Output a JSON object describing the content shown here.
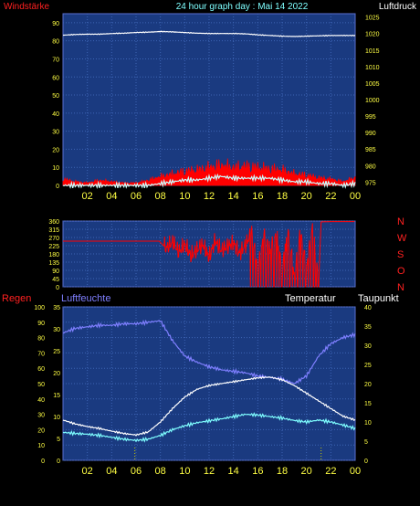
{
  "header": {
    "left_title": "Windstärke",
    "center_title": "24 hour graph day : Mai 14 2022",
    "right_title": "Luftdruck"
  },
  "colors": {
    "plot_bg": "#1a3a80",
    "frame": "#5a6fd0",
    "grid": "#3d64b4",
    "tick_text": "#ffff44",
    "wind": "#ff0000",
    "wind_avg": "#ccffff",
    "pressure": "#ffffff",
    "direction": "#ff0000",
    "humidity": "#7f7fff",
    "temperature": "#ffffff",
    "dewpoint": "#7fffff",
    "rain_marker": "#c8c800"
  },
  "chart_data": [
    {
      "type": "line",
      "name": "wind-pressure",
      "x_ticks": [
        "02",
        "04",
        "06",
        "08",
        "10",
        "12",
        "14",
        "16",
        "18",
        "20",
        "22",
        "00"
      ],
      "left_axis": {
        "label": "Windstärke",
        "ticks": [
          0,
          10,
          20,
          30,
          40,
          50,
          60,
          70,
          80,
          90
        ],
        "ylim": [
          0,
          95
        ]
      },
      "right_axis": {
        "label": "Luftdruck",
        "ticks": [
          975,
          980,
          985,
          990,
          995,
          1000,
          1005,
          1010,
          1015,
          1020,
          1025
        ],
        "ylim": [
          974,
          1026
        ]
      },
      "xlim": [
        0,
        24
      ],
      "series": [
        {
          "name": "Luftdruck",
          "axis": "right",
          "x": [
            0,
            1,
            2,
            3,
            4,
            5,
            6,
            7,
            8,
            9,
            10,
            11,
            12,
            13,
            14,
            15,
            16,
            17,
            18,
            19,
            20,
            21,
            22,
            23,
            24
          ],
          "values": [
            1019.5,
            1019.7,
            1019.8,
            1019.8,
            1020,
            1020.1,
            1020.3,
            1020.4,
            1020.6,
            1020.5,
            1020.3,
            1020.1,
            1020,
            1020,
            1020,
            1019.9,
            1019.6,
            1019.4,
            1019.2,
            1019.1,
            1019.2,
            1019.3,
            1019.4,
            1019.4,
            1019.4
          ]
        },
        {
          "name": "Böen",
          "axis": "left",
          "x": [
            0,
            1,
            2,
            3,
            4,
            5,
            6,
            7,
            8,
            9,
            10,
            11,
            12,
            13,
            14,
            15,
            16,
            17,
            18,
            19,
            20,
            21,
            22,
            23,
            24
          ],
          "values": [
            5,
            3,
            2,
            4,
            3,
            2,
            2,
            4,
            7,
            9,
            11,
            12,
            14,
            16,
            14,
            15,
            14,
            13,
            12,
            9,
            8,
            6,
            5,
            3,
            6
          ]
        },
        {
          "name": "Mittel",
          "axis": "left",
          "x": [
            0,
            1,
            2,
            3,
            4,
            5,
            6,
            7,
            8,
            9,
            10,
            11,
            12,
            13,
            14,
            15,
            16,
            17,
            18,
            19,
            20,
            21,
            22,
            23,
            24
          ],
          "values": [
            0,
            0,
            0,
            0,
            0,
            0,
            0,
            0,
            1,
            2,
            3,
            3,
            4,
            5,
            4,
            4,
            4,
            4,
            3,
            2,
            2,
            1,
            1,
            0,
            1
          ]
        }
      ]
    },
    {
      "type": "line",
      "name": "wind-direction",
      "x_ticks": [],
      "left_axis": {
        "ticks": [
          0,
          45,
          90,
          135,
          180,
          225,
          270,
          315,
          360
        ],
        "ylim": [
          0,
          360
        ]
      },
      "right_labels": [
        "N",
        "W",
        "S",
        "O",
        "N"
      ],
      "xlim": [
        0,
        24
      ],
      "series": [
        {
          "name": "Richtung",
          "x": [
            0,
            1,
            2,
            3,
            4,
            5,
            6,
            7,
            7.9,
            8.5,
            9,
            9.5,
            10,
            10.5,
            11,
            11.5,
            12,
            12.5,
            13,
            13.5,
            14,
            14.5,
            15,
            15.5,
            16,
            16.5,
            17,
            17.5,
            18,
            18.5,
            19,
            19.5,
            20,
            20.5,
            21,
            21.2,
            22,
            23,
            24
          ],
          "values": [
            250,
            250,
            250,
            250,
            250,
            250,
            250,
            250,
            250,
            210,
            245,
            190,
            230,
            170,
            200,
            230,
            160,
            250,
            200,
            220,
            240,
            180,
            230,
            300,
            90,
            280,
            200,
            300,
            120,
            320,
            60,
            300,
            100,
            330,
            20,
            355,
            357,
            357,
            357
          ]
        }
      ]
    },
    {
      "type": "line",
      "name": "temp-humidity",
      "x_ticks": [
        "02",
        "04",
        "06",
        "08",
        "10",
        "12",
        "14",
        "16",
        "18",
        "20",
        "22",
        "00"
      ],
      "left_axis": {
        "label": "Regen",
        "ticks": [
          0,
          10,
          20,
          30,
          40,
          50,
          60,
          70,
          80,
          90,
          100
        ],
        "ylim": [
          0,
          100
        ]
      },
      "left_axis2": {
        "label": "Luftfeuchte",
        "ticks": [
          0,
          5,
          10,
          15,
          20,
          25,
          30,
          35
        ],
        "ylim": [
          0,
          35
        ]
      },
      "right_axis": {
        "label": "Taupunkt",
        "ticks": [
          0,
          5,
          10,
          15,
          20,
          25,
          30,
          35,
          40
        ],
        "ylim": [
          0,
          40
        ]
      },
      "right_axis2": {
        "label": "Temperatur"
      },
      "xlim": [
        0,
        24
      ],
      "series": [
        {
          "name": "Luftfeuchte",
          "axis": "left",
          "x": [
            0,
            1,
            2,
            3,
            4,
            5,
            6,
            7,
            8,
            9,
            10,
            11,
            12,
            13,
            14,
            15,
            16,
            17,
            18,
            19,
            20,
            21,
            22,
            23,
            24
          ],
          "values": [
            83,
            86,
            87,
            88,
            88,
            89,
            89,
            90,
            91,
            78,
            68,
            64,
            61,
            59,
            58,
            57,
            55,
            54,
            53,
            50,
            55,
            68,
            76,
            80,
            82
          ]
        },
        {
          "name": "Temperatur",
          "axis": "right",
          "x": [
            0,
            1,
            2,
            3,
            4,
            5,
            6,
            7,
            8,
            9,
            10,
            11,
            12,
            13,
            14,
            15,
            16,
            17,
            18,
            19,
            20,
            21,
            22,
            23,
            24
          ],
          "values": [
            10.5,
            9.5,
            8.8,
            8.3,
            7.6,
            7,
            6.6,
            7.4,
            10,
            13.5,
            16.5,
            18.5,
            19.5,
            20,
            20.5,
            21,
            21.5,
            21.7,
            21,
            19.5,
            17.5,
            15.5,
            13.5,
            11.5,
            10.5
          ]
        },
        {
          "name": "Taupunkt",
          "axis": "right",
          "x": [
            0,
            1,
            2,
            3,
            4,
            5,
            6,
            7,
            8,
            9,
            10,
            11,
            12,
            13,
            14,
            15,
            16,
            17,
            18,
            19,
            20,
            21,
            22,
            23,
            24
          ],
          "values": [
            7.3,
            7,
            6.8,
            6.5,
            6,
            5.5,
            5.2,
            5.5,
            6.5,
            8,
            9,
            9.8,
            10.3,
            10.8,
            11.4,
            12,
            11.8,
            11.4,
            11,
            10.4,
            10,
            10.5,
            10,
            9.2,
            8.3
          ]
        }
      ],
      "rain_markers_x": [
        5.9,
        21.2
      ]
    }
  ],
  "panel2_right_letters": [
    "N",
    "W",
    "S",
    "O",
    "N"
  ],
  "panel3_headers": {
    "left1": "Regen",
    "left2": "Luftfeuchte",
    "right1": "Temperatur",
    "right2": "Taupunkt"
  }
}
